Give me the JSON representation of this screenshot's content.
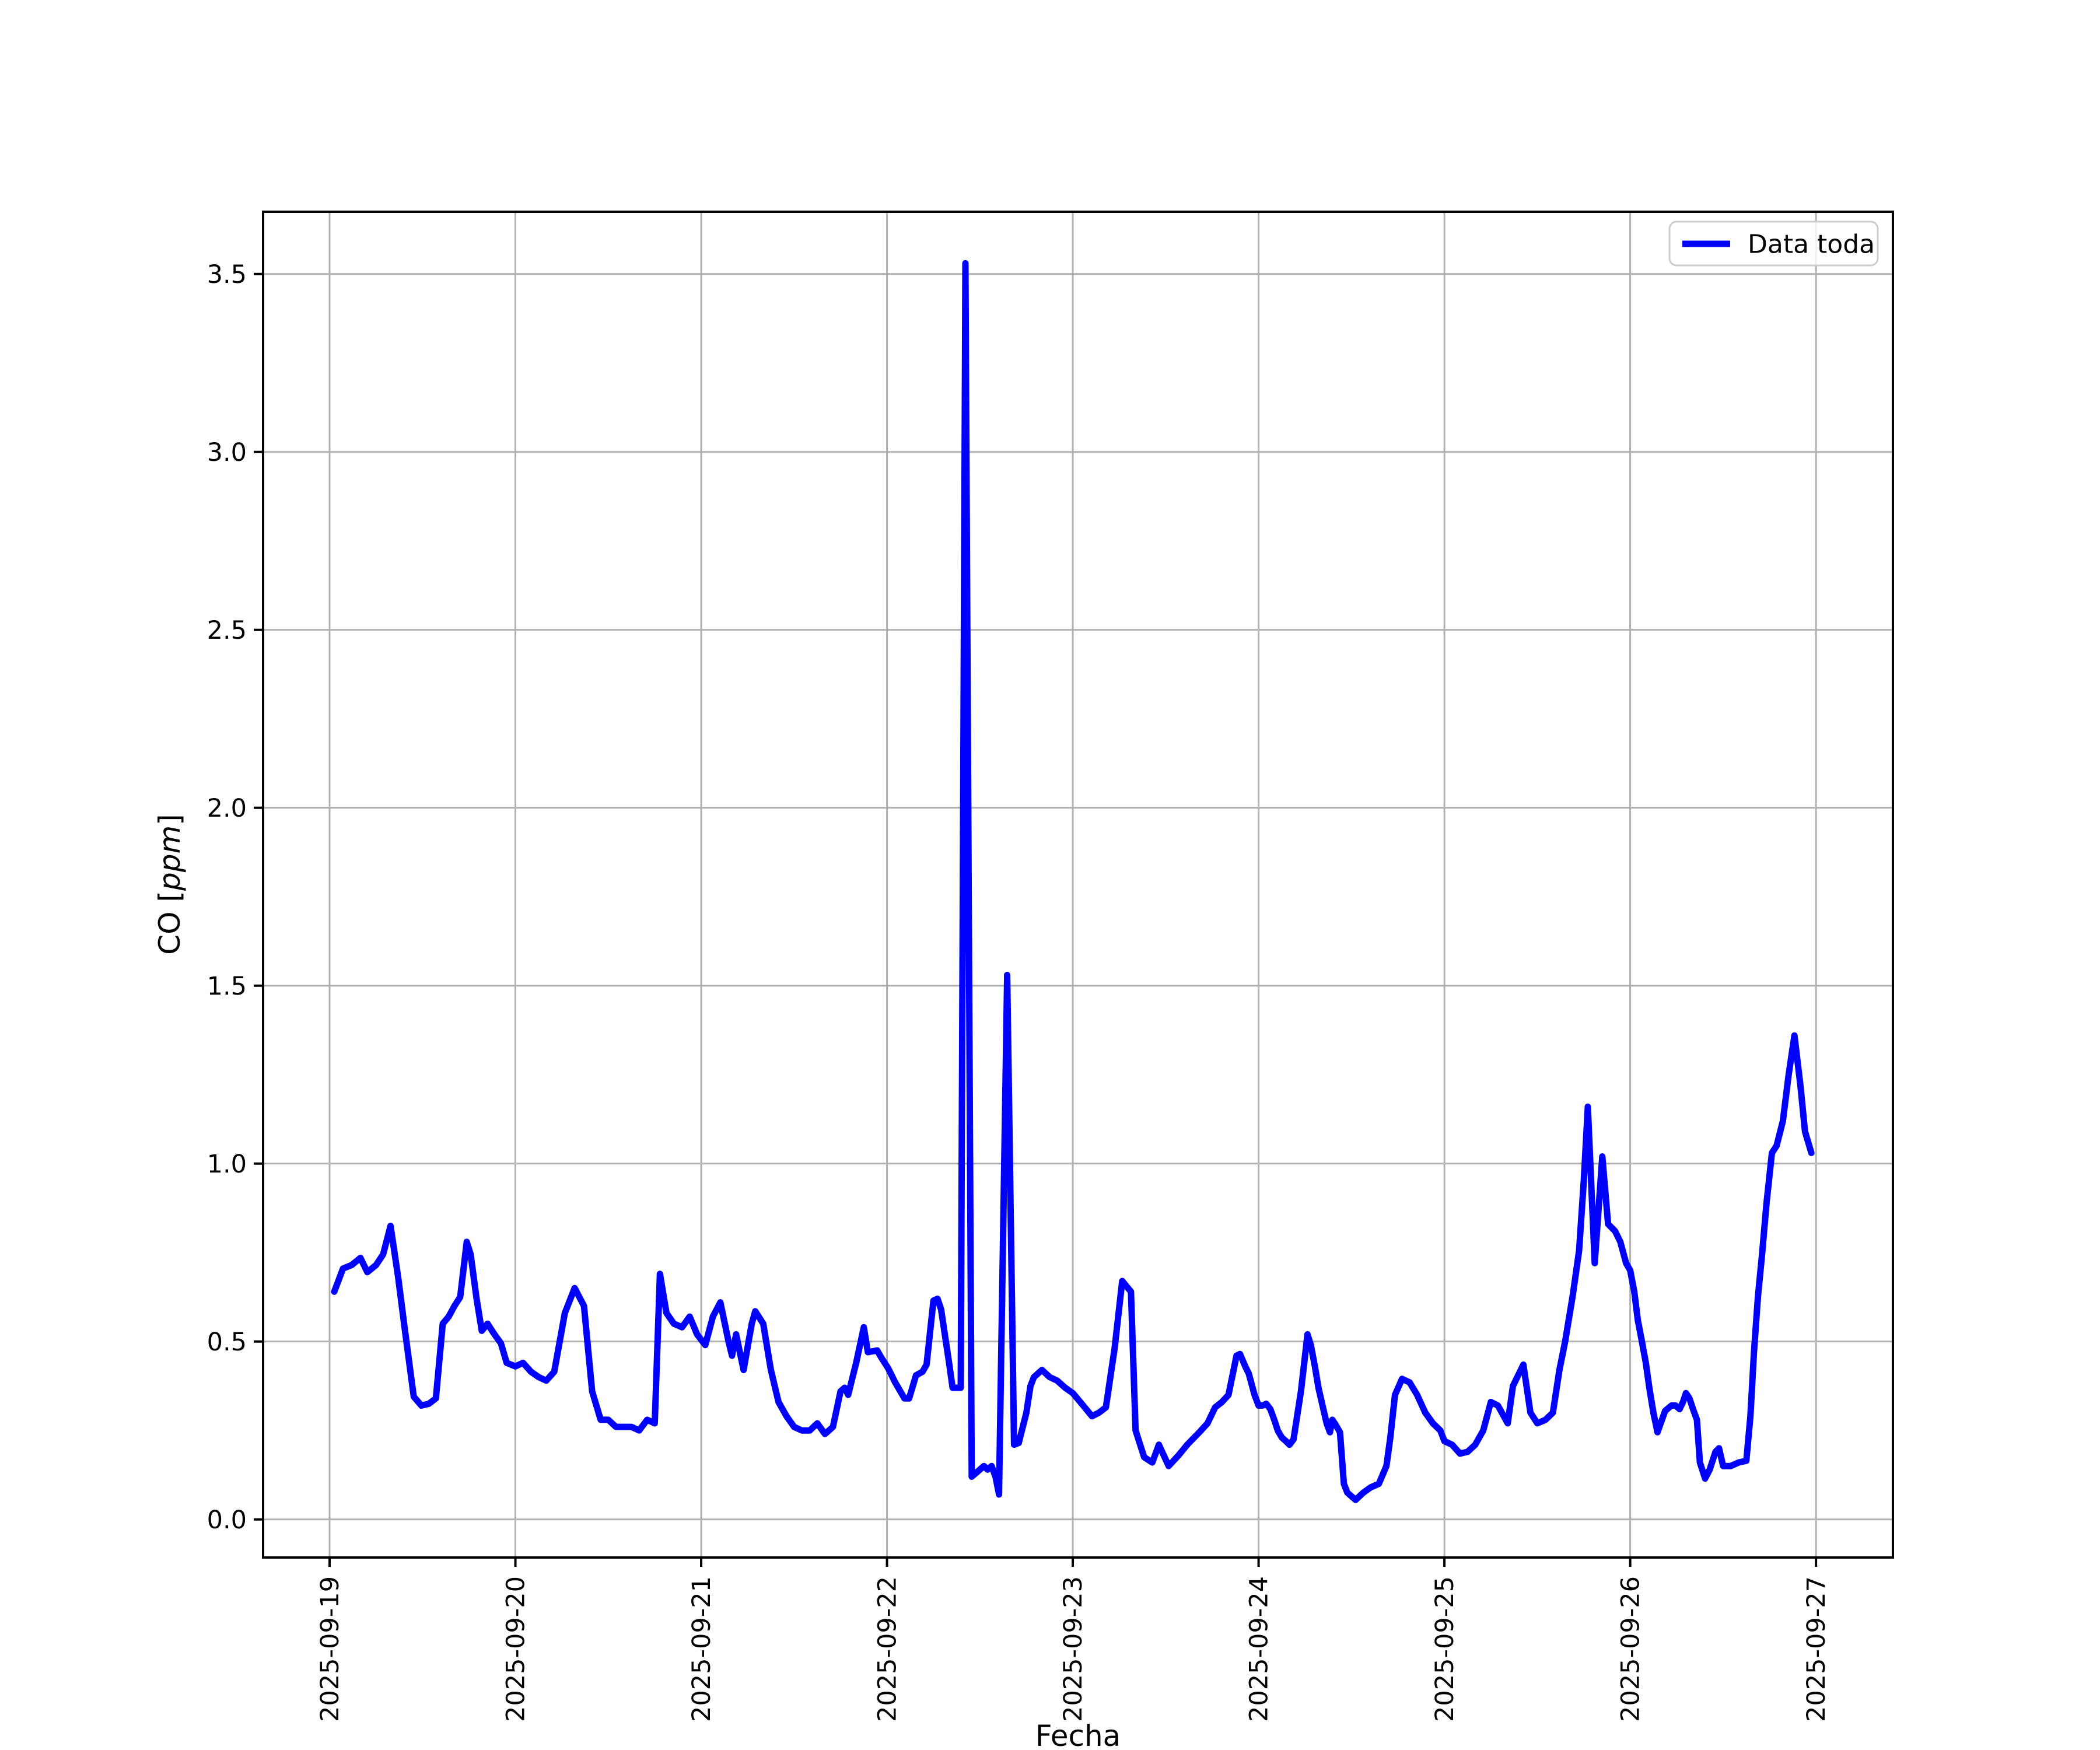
{
  "chart_data": {
    "type": "line",
    "title": "",
    "xlabel": "Fecha",
    "ylabel": "CO [ppm]",
    "ylabel_parts": {
      "prefix": "CO [",
      "italic": "ppm",
      "suffix": "]"
    },
    "legend": {
      "position": "upper right",
      "entries": [
        {
          "label": "Data toda",
          "color": "#0000ff"
        }
      ]
    },
    "grid": true,
    "ylim": [
      -0.107,
      3.675
    ],
    "xlim_days": [
      -0.358,
      8.414
    ],
    "y_ticks": {
      "values": [
        0.0,
        0.5,
        1.0,
        1.5,
        2.0,
        2.5,
        3.0,
        3.5
      ],
      "labels": [
        "0.0",
        "0.5",
        "1.0",
        "1.5",
        "2.0",
        "2.5",
        "3.0",
        "3.5"
      ]
    },
    "x_ticks": {
      "positions_days": [
        0,
        1,
        2,
        3,
        4,
        5,
        6,
        7,
        8
      ],
      "labels": [
        "2025-09-19",
        "2025-09-20",
        "2025-09-21",
        "2025-09-22",
        "2025-09-23",
        "2025-09-24",
        "2025-09-25",
        "2025-09-26",
        "2025-09-27"
      ]
    },
    "series": [
      {
        "name": "Data toda",
        "color": "#0000ff",
        "x_unit": "days since 2025-09-19 00:00",
        "y_unit": "ppm",
        "points": [
          [
            0.025,
            0.64
          ],
          [
            0.072,
            0.705
          ],
          [
            0.119,
            0.715
          ],
          [
            0.166,
            0.735
          ],
          [
            0.203,
            0.695
          ],
          [
            0.25,
            0.715
          ],
          [
            0.288,
            0.745
          ],
          [
            0.328,
            0.825
          ],
          [
            0.369,
            0.68
          ],
          [
            0.406,
            0.53
          ],
          [
            0.453,
            0.345
          ],
          [
            0.494,
            0.32
          ],
          [
            0.534,
            0.325
          ],
          [
            0.572,
            0.34
          ],
          [
            0.609,
            0.55
          ],
          [
            0.641,
            0.57
          ],
          [
            0.672,
            0.6
          ],
          [
            0.703,
            0.625
          ],
          [
            0.738,
            0.78
          ],
          [
            0.759,
            0.745
          ],
          [
            0.791,
            0.62
          ],
          [
            0.819,
            0.53
          ],
          [
            0.85,
            0.55
          ],
          [
            0.881,
            0.525
          ],
          [
            0.922,
            0.495
          ],
          [
            0.953,
            0.44
          ],
          [
            1.0,
            0.43
          ],
          [
            1.041,
            0.44
          ],
          [
            1.084,
            0.415
          ],
          [
            1.125,
            0.4
          ],
          [
            1.166,
            0.39
          ],
          [
            1.209,
            0.415
          ],
          [
            1.266,
            0.58
          ],
          [
            1.319,
            0.65
          ],
          [
            1.369,
            0.6
          ],
          [
            1.413,
            0.36
          ],
          [
            1.459,
            0.28
          ],
          [
            1.5,
            0.28
          ],
          [
            1.541,
            0.26
          ],
          [
            1.584,
            0.26
          ],
          [
            1.625,
            0.26
          ],
          [
            1.666,
            0.25
          ],
          [
            1.709,
            0.28
          ],
          [
            1.75,
            0.27
          ],
          [
            1.778,
            0.69
          ],
          [
            1.813,
            0.58
          ],
          [
            1.853,
            0.55
          ],
          [
            1.897,
            0.54
          ],
          [
            1.938,
            0.57
          ],
          [
            1.978,
            0.52
          ],
          [
            2.022,
            0.49
          ],
          [
            2.063,
            0.57
          ],
          [
            2.103,
            0.61
          ],
          [
            2.147,
            0.5
          ],
          [
            2.166,
            0.46
          ],
          [
            2.188,
            0.52
          ],
          [
            2.228,
            0.42
          ],
          [
            2.272,
            0.55
          ],
          [
            2.291,
            0.585
          ],
          [
            2.334,
            0.55
          ],
          [
            2.375,
            0.42
          ],
          [
            2.416,
            0.33
          ],
          [
            2.459,
            0.29
          ],
          [
            2.5,
            0.26
          ],
          [
            2.541,
            0.25
          ],
          [
            2.584,
            0.25
          ],
          [
            2.625,
            0.27
          ],
          [
            2.666,
            0.24
          ],
          [
            2.709,
            0.26
          ],
          [
            2.75,
            0.36
          ],
          [
            2.772,
            0.37
          ],
          [
            2.791,
            0.35
          ],
          [
            2.834,
            0.44
          ],
          [
            2.875,
            0.54
          ],
          [
            2.897,
            0.47
          ],
          [
            2.947,
            0.475
          ],
          [
            2.969,
            0.455
          ],
          [
            3.006,
            0.425
          ],
          [
            3.044,
            0.385
          ],
          [
            3.094,
            0.34
          ],
          [
            3.119,
            0.34
          ],
          [
            3.156,
            0.405
          ],
          [
            3.191,
            0.415
          ],
          [
            3.213,
            0.435
          ],
          [
            3.25,
            0.615
          ],
          [
            3.272,
            0.62
          ],
          [
            3.291,
            0.59
          ],
          [
            3.334,
            0.44
          ],
          [
            3.353,
            0.37
          ],
          [
            3.397,
            0.37
          ],
          [
            3.422,
            3.53
          ],
          [
            3.456,
            0.12
          ],
          [
            3.5,
            0.14
          ],
          [
            3.522,
            0.15
          ],
          [
            3.541,
            0.14
          ],
          [
            3.563,
            0.15
          ],
          [
            3.584,
            0.12
          ],
          [
            3.603,
            0.07
          ],
          [
            3.647,
            1.53
          ],
          [
            3.684,
            0.21
          ],
          [
            3.709,
            0.215
          ],
          [
            3.75,
            0.3
          ],
          [
            3.772,
            0.375
          ],
          [
            3.791,
            0.4
          ],
          [
            3.834,
            0.42
          ],
          [
            3.875,
            0.4
          ],
          [
            3.916,
            0.39
          ],
          [
            3.959,
            0.37
          ],
          [
            4.0,
            0.355
          ],
          [
            4.056,
            0.32
          ],
          [
            4.103,
            0.29
          ],
          [
            4.141,
            0.3
          ],
          [
            4.178,
            0.315
          ],
          [
            4.225,
            0.48
          ],
          [
            4.266,
            0.67
          ],
          [
            4.297,
            0.65
          ],
          [
            4.313,
            0.64
          ],
          [
            4.338,
            0.25
          ],
          [
            4.384,
            0.175
          ],
          [
            4.428,
            0.16
          ],
          [
            4.463,
            0.21
          ],
          [
            4.516,
            0.15
          ],
          [
            4.569,
            0.18
          ],
          [
            4.616,
            0.21
          ],
          [
            4.681,
            0.245
          ],
          [
            4.725,
            0.27
          ],
          [
            4.766,
            0.315
          ],
          [
            4.803,
            0.33
          ],
          [
            4.838,
            0.35
          ],
          [
            4.881,
            0.46
          ],
          [
            4.9,
            0.465
          ],
          [
            4.928,
            0.43
          ],
          [
            4.947,
            0.41
          ],
          [
            4.978,
            0.35
          ],
          [
            5.0,
            0.32
          ],
          [
            5.022,
            0.32
          ],
          [
            5.041,
            0.325
          ],
          [
            5.063,
            0.31
          ],
          [
            5.084,
            0.28
          ],
          [
            5.103,
            0.25
          ],
          [
            5.125,
            0.23
          ],
          [
            5.147,
            0.22
          ],
          [
            5.166,
            0.21
          ],
          [
            5.188,
            0.225
          ],
          [
            5.228,
            0.36
          ],
          [
            5.263,
            0.52
          ],
          [
            5.281,
            0.49
          ],
          [
            5.303,
            0.43
          ],
          [
            5.322,
            0.37
          ],
          [
            5.344,
            0.32
          ],
          [
            5.366,
            0.27
          ],
          [
            5.384,
            0.245
          ],
          [
            5.397,
            0.28
          ],
          [
            5.416,
            0.265
          ],
          [
            5.438,
            0.245
          ],
          [
            5.459,
            0.1
          ],
          [
            5.478,
            0.075
          ],
          [
            5.522,
            0.055
          ],
          [
            5.563,
            0.075
          ],
          [
            5.603,
            0.09
          ],
          [
            5.647,
            0.1
          ],
          [
            5.688,
            0.15
          ],
          [
            5.709,
            0.23
          ],
          [
            5.734,
            0.35
          ],
          [
            5.772,
            0.395
          ],
          [
            5.813,
            0.385
          ],
          [
            5.853,
            0.35
          ],
          [
            5.897,
            0.3
          ],
          [
            5.938,
            0.27
          ],
          [
            5.978,
            0.25
          ],
          [
            6.0,
            0.22
          ],
          [
            6.041,
            0.21
          ],
          [
            6.084,
            0.185
          ],
          [
            6.125,
            0.19
          ],
          [
            6.166,
            0.21
          ],
          [
            6.209,
            0.25
          ],
          [
            6.25,
            0.33
          ],
          [
            6.288,
            0.32
          ],
          [
            6.341,
            0.27
          ],
          [
            6.369,
            0.375
          ],
          [
            6.425,
            0.435
          ],
          [
            6.463,
            0.3
          ],
          [
            6.5,
            0.27
          ],
          [
            6.544,
            0.28
          ],
          [
            6.584,
            0.3
          ],
          [
            6.619,
            0.42
          ],
          [
            6.65,
            0.5
          ],
          [
            6.691,
            0.63
          ],
          [
            6.725,
            0.755
          ],
          [
            6.75,
            0.95
          ],
          [
            6.772,
            1.16
          ],
          [
            6.809,
            0.72
          ],
          [
            6.85,
            1.02
          ],
          [
            6.881,
            0.83
          ],
          [
            6.919,
            0.81
          ],
          [
            6.947,
            0.78
          ],
          [
            6.978,
            0.72
          ],
          [
            7.0,
            0.7
          ],
          [
            7.022,
            0.64
          ],
          [
            7.041,
            0.56
          ],
          [
            7.063,
            0.5
          ],
          [
            7.084,
            0.44
          ],
          [
            7.103,
            0.37
          ],
          [
            7.125,
            0.3
          ],
          [
            7.147,
            0.245
          ],
          [
            7.188,
            0.305
          ],
          [
            7.222,
            0.32
          ],
          [
            7.244,
            0.32
          ],
          [
            7.266,
            0.31
          ],
          [
            7.284,
            0.33
          ],
          [
            7.3,
            0.355
          ],
          [
            7.319,
            0.34
          ],
          [
            7.338,
            0.31
          ],
          [
            7.359,
            0.28
          ],
          [
            7.375,
            0.16
          ],
          [
            7.403,
            0.115
          ],
          [
            7.428,
            0.14
          ],
          [
            7.459,
            0.19
          ],
          [
            7.478,
            0.2
          ],
          [
            7.5,
            0.15
          ],
          [
            7.541,
            0.15
          ],
          [
            7.584,
            0.16
          ],
          [
            7.625,
            0.165
          ],
          [
            7.647,
            0.29
          ],
          [
            7.666,
            0.47
          ],
          [
            7.688,
            0.63
          ],
          [
            7.709,
            0.74
          ],
          [
            7.734,
            0.89
          ],
          [
            7.763,
            1.03
          ],
          [
            7.788,
            1.05
          ],
          [
            7.822,
            1.12
          ],
          [
            7.853,
            1.25
          ],
          [
            7.884,
            1.36
          ],
          [
            7.916,
            1.22
          ],
          [
            7.941,
            1.09
          ],
          [
            7.975,
            1.03
          ]
        ]
      }
    ],
    "colors": {
      "line": "#0000ff",
      "grid": "#b0b0b0",
      "spine": "#000000",
      "text": "#000000",
      "legend_border": "#cccccc",
      "background": "#ffffff"
    }
  }
}
